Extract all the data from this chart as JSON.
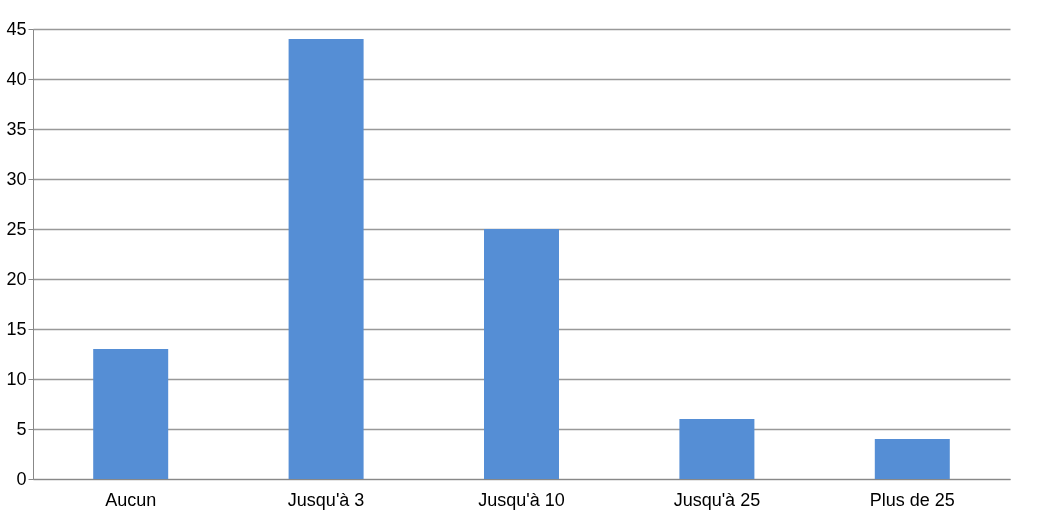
{
  "chart_data": {
    "type": "bar",
    "categories": [
      "Aucun",
      "Jusqu'à 3",
      "Jusqu'à 10",
      "Jusqu'à 25",
      "Plus de 25"
    ],
    "values": [
      13,
      44,
      25,
      6,
      4
    ],
    "color": "#558ed5",
    "ylim": [
      0,
      45
    ],
    "yticks": [
      0,
      5,
      10,
      15,
      20,
      25,
      30,
      35,
      40,
      45
    ],
    "grid": "y"
  }
}
